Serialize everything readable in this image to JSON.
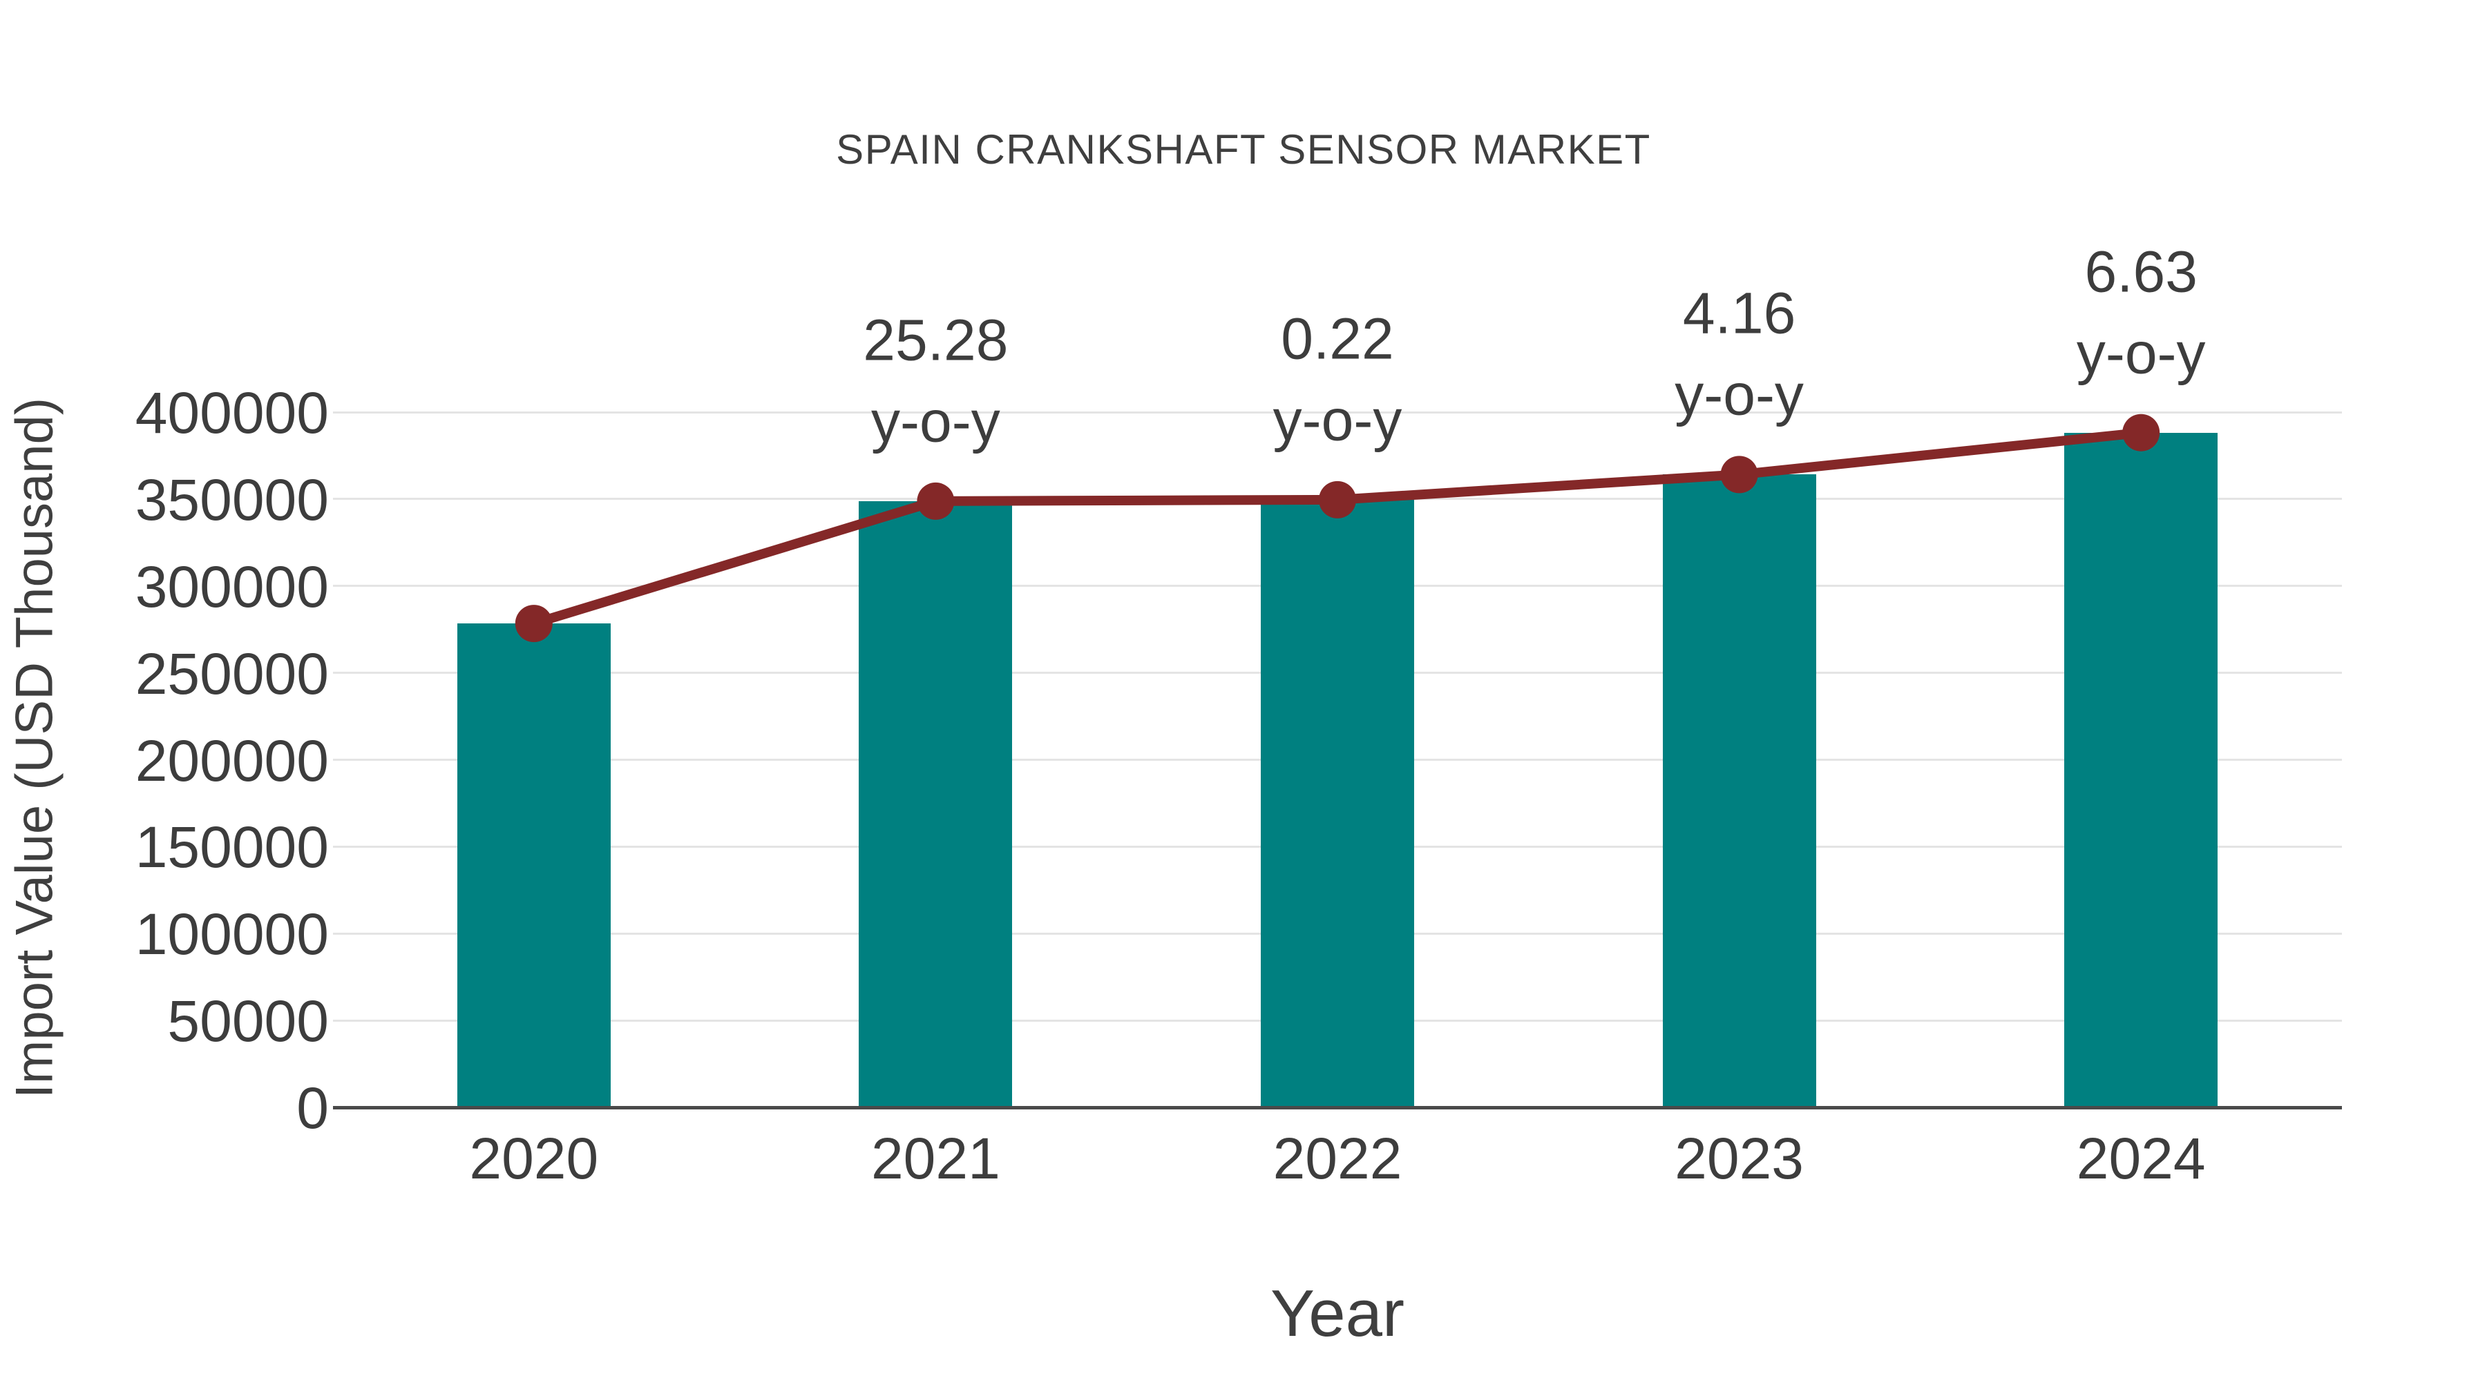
{
  "chart_data": {
    "type": "bar",
    "title": "SPAIN CRANKSHAFT SENSOR MARKET",
    "xlabel": "Year",
    "ylabel": "Import Value (USD Thousand)",
    "categories": [
      "2020",
      "2021",
      "2022",
      "2023",
      "2024"
    ],
    "series": [
      {
        "name": "import-value-bars",
        "type": "bar",
        "values": [
          278400,
          348800,
          349600,
          364100,
          388200
        ]
      },
      {
        "name": "import-value-trend-line",
        "type": "line",
        "values": [
          278400,
          348800,
          349600,
          364100,
          388200
        ]
      }
    ],
    "annotations": [
      {
        "category": "2021",
        "value": "25.28",
        "suffix": "y-o-y"
      },
      {
        "category": "2022",
        "value": "0.22",
        "suffix": "y-o-y"
      },
      {
        "category": "2023",
        "value": "4.16",
        "suffix": "y-o-y"
      },
      {
        "category": "2024",
        "value": "6.63",
        "suffix": "y-o-y"
      }
    ],
    "ylim": [
      0,
      400000
    ],
    "ytick_step": 50000,
    "yticks": [
      "0",
      "50000",
      "100000",
      "150000",
      "200000",
      "250000",
      "300000",
      "350000",
      "400000"
    ],
    "grid": "horizontal",
    "legend_position": "none",
    "colors": {
      "bar": "#008080",
      "line": "#842828",
      "marker": "#842828",
      "text": "#3d3d3d",
      "grid": "#e4e4e4",
      "axis": "#4a4a4a",
      "background": "#ffffff"
    }
  }
}
